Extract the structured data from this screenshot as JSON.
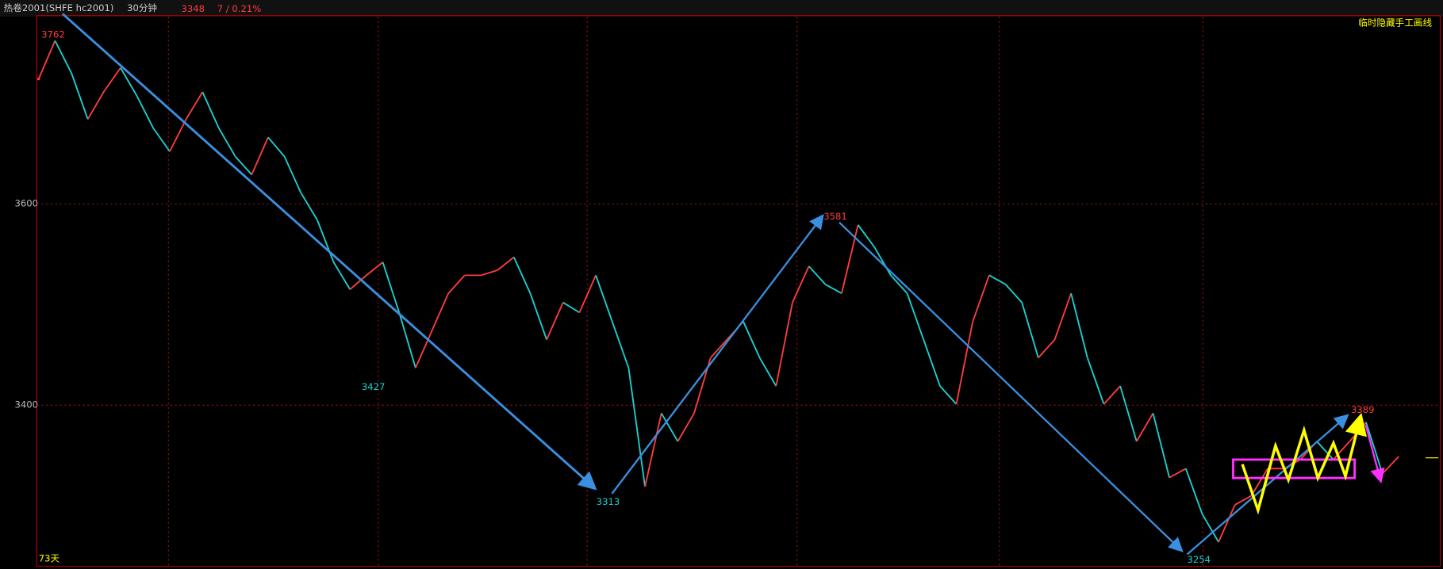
{
  "toolbar": {
    "symbol": "热卷2001(SHFE hc2001)",
    "period": "30分钟",
    "price": "3348",
    "change": "7 / 0.21%",
    "hide_button": "临时隐藏手工画线"
  },
  "chart_data": {
    "type": "price-path",
    "footer": "73天",
    "values": [
      3724,
      3762,
      3730,
      3684,
      3712,
      3735,
      3707,
      3675,
      3652,
      3684,
      3711,
      3675,
      3647,
      3629,
      3666,
      3647,
      3611,
      3584,
      3542,
      3515,
      3529,
      3542,
      3492,
      3437,
      3474,
      3511,
      3529,
      3529,
      3534,
      3547,
      3511,
      3465,
      3502,
      3492,
      3529,
      3483,
      3437,
      3319,
      3392,
      3364,
      3392,
      3447,
      3465,
      3483,
      3447,
      3419,
      3502,
      3538,
      3520,
      3511,
      3579,
      3557,
      3529,
      3511,
      3465,
      3419,
      3401,
      3483,
      3529,
      3520,
      3502,
      3447,
      3465,
      3511,
      3447,
      3401,
      3419,
      3364,
      3392,
      3328,
      3337,
      3292,
      3264,
      3301,
      3310,
      3337,
      3337,
      3346,
      3364,
      3346,
      3364,
      3383,
      3332,
      3349
    ],
    "up_color": "#ff3c3c",
    "down_color": "#19d2d2",
    "ylim": [
      3240,
      3786
    ],
    "yticks": [
      3400,
      3600
    ],
    "grid": true,
    "annotations": [
      3762,
      3427,
      3313,
      3581,
      3254,
      3389
    ]
  }
}
